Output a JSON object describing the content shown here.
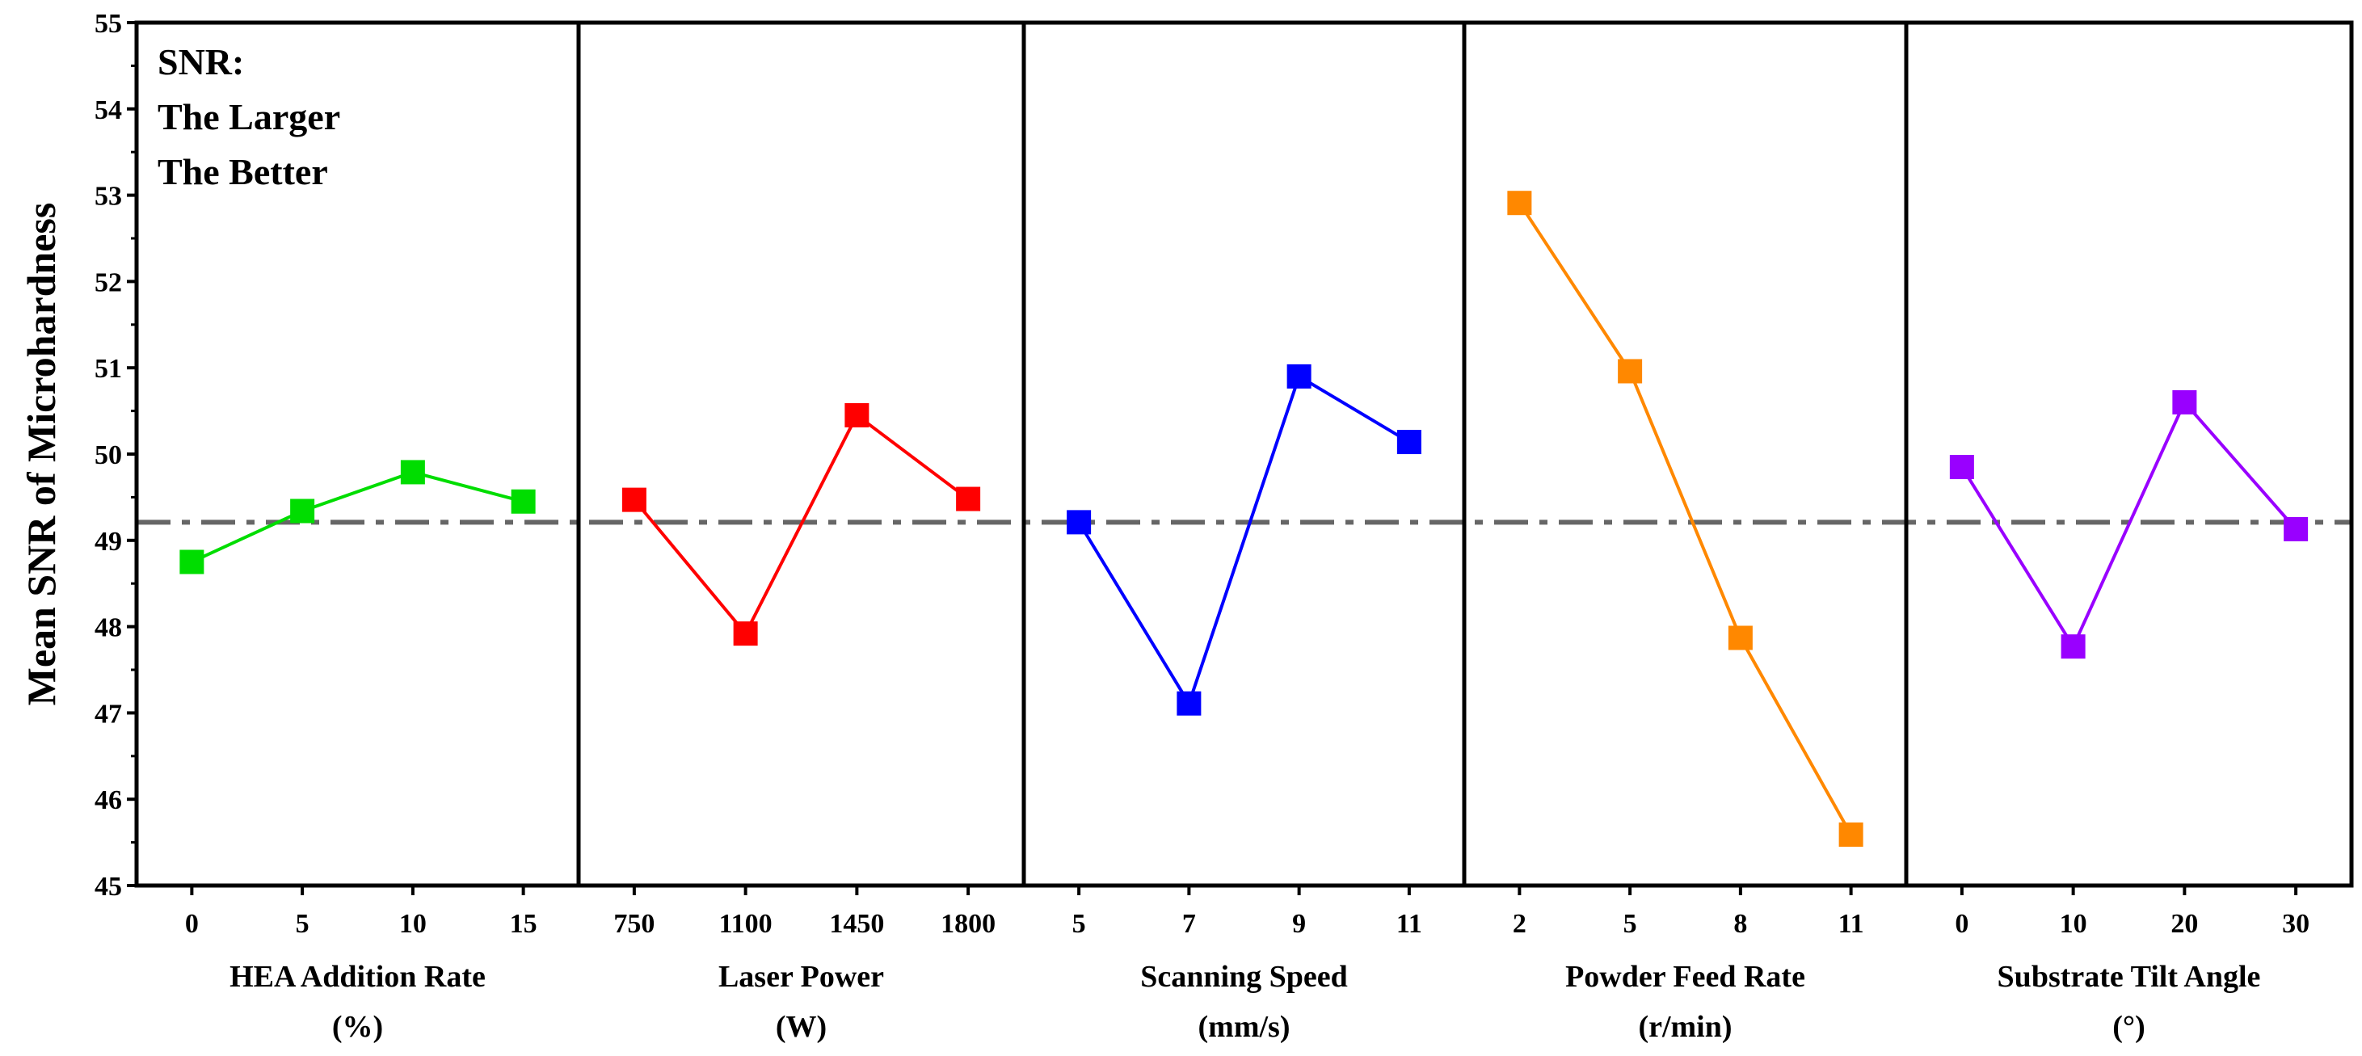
{
  "chart_data": {
    "type": "line",
    "ylabel": "Mean SNR of Microhardness",
    "ylim": [
      45,
      55
    ],
    "yticks": [
      45,
      46,
      47,
      48,
      49,
      50,
      51,
      52,
      53,
      54,
      55
    ],
    "annotation": [
      "SNR:",
      "The Larger",
      "The Better"
    ],
    "reference_line": {
      "value": 49.21,
      "style": "dash-dot",
      "color": "#666666"
    },
    "marker": "square",
    "grid": false,
    "panels": [
      {
        "xlabel": [
          "HEA Addition Rate",
          "(%)"
        ],
        "categories": [
          "0",
          "5",
          "10",
          "15"
        ],
        "values": [
          48.75,
          49.34,
          49.79,
          49.45
        ],
        "color": "#00dd00"
      },
      {
        "xlabel": [
          "Laser Power",
          "(W)"
        ],
        "categories": [
          "750",
          "1100",
          "1450",
          "1800"
        ],
        "values": [
          49.47,
          47.92,
          50.45,
          49.48
        ],
        "color": "#ff0000"
      },
      {
        "xlabel": [
          "Scanning Speed",
          "(mm/s)"
        ],
        "categories": [
          "5",
          "7",
          "9",
          "11"
        ],
        "values": [
          49.21,
          47.11,
          50.9,
          50.14
        ],
        "color": "#0000ff"
      },
      {
        "xlabel": [
          "Powder Feed Rate",
          "(r/min)"
        ],
        "categories": [
          "2",
          "5",
          "8",
          "11"
        ],
        "values": [
          52.91,
          50.96,
          47.87,
          45.59
        ],
        "color": "#ff8800"
      },
      {
        "xlabel": [
          "Substrate Tilt Angle",
          "(°)"
        ],
        "categories": [
          "0",
          "10",
          "20",
          "30"
        ],
        "values": [
          49.85,
          47.77,
          50.6,
          49.13
        ],
        "color": "#9900ff"
      }
    ]
  }
}
